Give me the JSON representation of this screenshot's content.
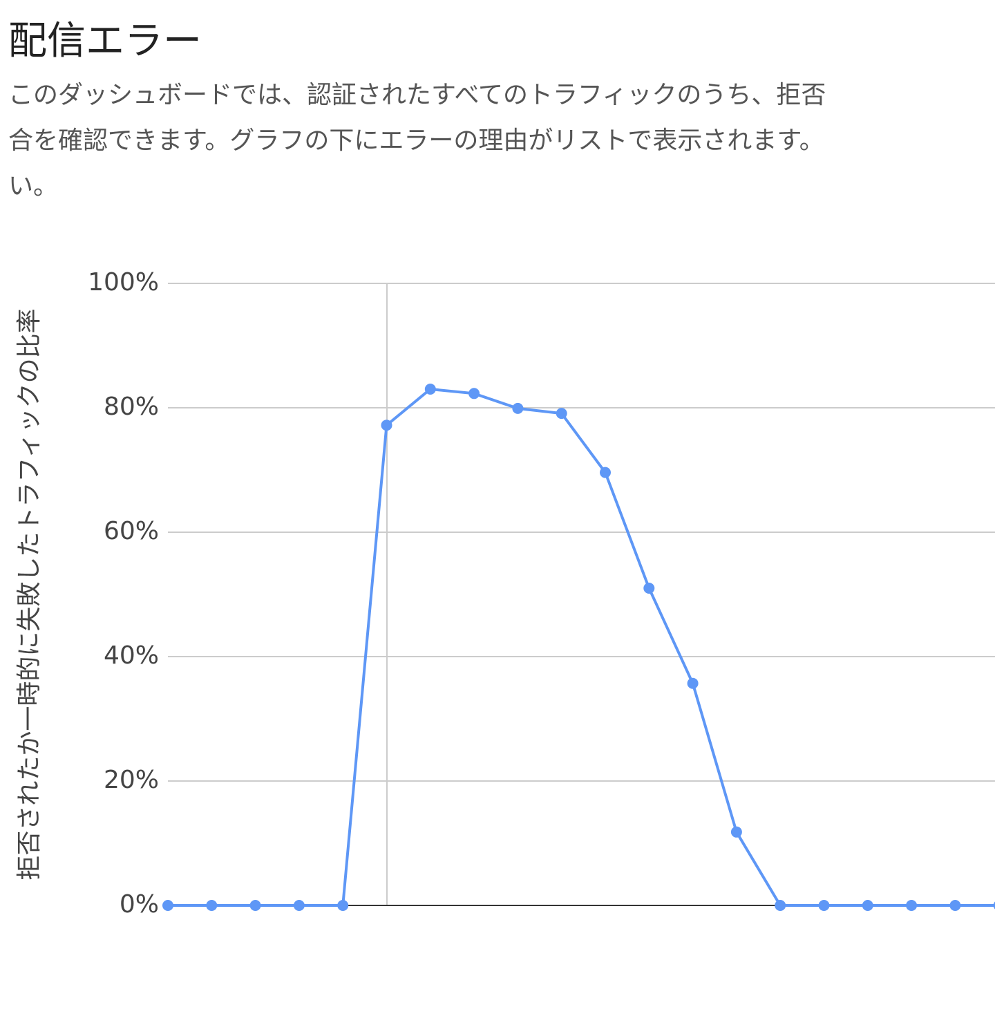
{
  "title": "配信エラー",
  "description": [
    "このダッシュボードでは、認証されたすべてのトラフィックのうち、拒否",
    "合を確認できます。グラフの下にエラーの理由がリストで表示されます。",
    "い。"
  ],
  "chart_data": {
    "type": "line",
    "y_label": "拒否されたか一時的に失敗したトラフィックの比率",
    "categories": [
      null,
      null,
      null,
      null,
      null,
      null,
      null,
      null,
      null,
      null,
      null,
      null,
      null,
      null,
      null,
      null,
      null,
      null,
      null,
      null
    ],
    "values": [
      0,
      0,
      0,
      0,
      0,
      77.2,
      83,
      82.3,
      79.9,
      79.1,
      69.6,
      51,
      35.7,
      11.8,
      0,
      0,
      0,
      0,
      0,
      0
    ],
    "color": "#5e97f6",
    "ylim": [
      0,
      100
    ],
    "yticks": [
      {
        "value": 0,
        "label": "0%"
      },
      {
        "value": 20,
        "label": "20%"
      },
      {
        "value": 40,
        "label": "40%"
      },
      {
        "value": 60,
        "label": "60%"
      },
      {
        "value": 80,
        "label": "80%"
      },
      {
        "value": 100,
        "label": "100%"
      }
    ],
    "grid": true
  }
}
